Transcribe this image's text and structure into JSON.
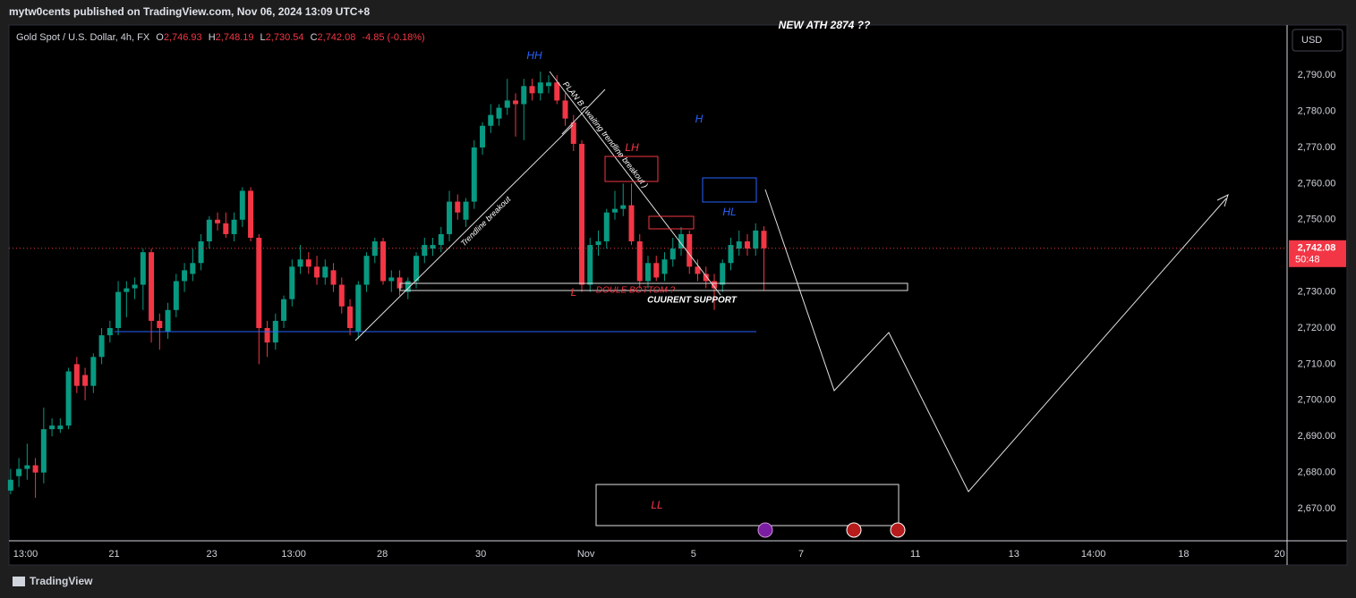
{
  "header": {
    "publisher": "mytw0cents published on TradingView.com, Nov 06, 2024 13:09 UTC+8",
    "footer": "TradingView"
  },
  "chart_data": {
    "type": "candlestick",
    "title": "Gold Spot / U.S. Dollar, 4h, FX",
    "legend_items": [
      {
        "label": "O",
        "value": "2,746.93"
      },
      {
        "label": "H",
        "value": "2,748.19"
      },
      {
        "label": "L",
        "value": "2,730.54"
      },
      {
        "label": "C",
        "value": "2,742.08"
      }
    ],
    "change": "-4.85 (-0.18%)",
    "currency": "USD",
    "open": [
      2675,
      2679,
      2681,
      2682,
      2680,
      2692,
      2692,
      2693,
      2710,
      2707,
      2704,
      2712,
      2718,
      2720,
      2730,
      2731,
      2732,
      2741,
      2722,
      2719,
      2725,
      2733,
      2735,
      2738,
      2744,
      2750,
      2749,
      2746,
      2750,
      2758,
      2745,
      2720,
      2716,
      2722,
      2728,
      2737,
      2739,
      2737,
      2734,
      2736,
      2732,
      2726,
      2719,
      2732,
      2740,
      2744,
      2733,
      2734,
      2730,
      2733,
      2740,
      2742,
      2743,
      2746,
      2755,
      2750,
      2755,
      2770,
      2776,
      2778,
      2781,
      2783,
      2782,
      2787,
      2785,
      2787,
      2788,
      2783,
      2777,
      2771,
      2732,
      2743,
      2744,
      2752,
      2753,
      2754,
      2744,
      2733,
      2738,
      2735,
      2739,
      2742,
      2746,
      2737,
      2735,
      2733,
      2732,
      2738,
      2742,
      2744,
      2742,
      2746.93
    ],
    "high": [
      2681,
      2684,
      2688,
      2684,
      2698,
      2695,
      2695,
      2709,
      2712,
      2709,
      2713,
      2720,
      2722,
      2733,
      2733,
      2734,
      2742,
      2742,
      2724,
      2727,
      2735,
      2738,
      2742,
      2746,
      2751,
      2752,
      2752,
      2752,
      2759,
      2759,
      2746,
      2722,
      2724,
      2729,
      2739,
      2743,
      2741,
      2740,
      2739,
      2738,
      2734,
      2728,
      2733,
      2741,
      2745,
      2745,
      2736,
      2736,
      2734,
      2741,
      2745,
      2745,
      2748,
      2758,
      2757,
      2756,
      2772,
      2777,
      2782,
      2782,
      2789,
      2785,
      2789,
      2789,
      2791,
      2790,
      2790,
      2785,
      2779,
      2772,
      2745,
      2747,
      2753,
      2758,
      2760,
      2760,
      2746,
      2740,
      2740,
      2741,
      2745,
      2748,
      2747,
      2739,
      2737,
      2735,
      2739,
      2745,
      2747,
      2746,
      2749,
      2748.19
    ],
    "low": [
      2674,
      2676,
      2678,
      2673,
      2677,
      2690,
      2691,
      2692,
      2702,
      2700,
      2702,
      2710,
      2716,
      2718,
      2723,
      2728,
      2725,
      2716,
      2714,
      2717,
      2723,
      2730,
      2733,
      2736,
      2742,
      2747,
      2745,
      2744,
      2748,
      2744,
      2710,
      2712,
      2714,
      2720,
      2726,
      2735,
      2735,
      2732,
      2732,
      2730,
      2724,
      2718,
      2717,
      2730,
      2738,
      2732,
      2730,
      2729,
      2728,
      2731,
      2738,
      2740,
      2741,
      2744,
      2750,
      2748,
      2753,
      2768,
      2774,
      2776,
      2779,
      2773,
      2772,
      2783,
      2783,
      2785,
      2782,
      2776,
      2769,
      2730,
      2730,
      2740,
      2742,
      2750,
      2751,
      2743,
      2731,
      2731,
      2733,
      2733,
      2737,
      2740,
      2735,
      2733,
      2731,
      2725,
      2730,
      2736,
      2740,
      2740,
      2740,
      2730.54
    ],
    "close": [
      2678,
      2681,
      2682,
      2680,
      2692,
      2693,
      2693,
      2708,
      2704,
      2704,
      2712,
      2718,
      2720,
      2730,
      2731,
      2732,
      2741,
      2722,
      2720,
      2725,
      2733,
      2736,
      2738,
      2744,
      2750,
      2749,
      2746,
      2750,
      2758,
      2745,
      2720,
      2716,
      2722,
      2728,
      2737,
      2739,
      2737,
      2734,
      2737,
      2732,
      2726,
      2720,
      2732,
      2740,
      2744,
      2733,
      2734,
      2731,
      2733,
      2740,
      2743,
      2743,
      2746,
      2755,
      2752,
      2755,
      2770,
      2776,
      2779,
      2781,
      2783,
      2782,
      2787,
      2785,
      2788,
      2788,
      2783,
      2778,
      2771,
      2732,
      2743,
      2744,
      2752,
      2753,
      2754,
      2744,
      2733,
      2738,
      2734,
      2739,
      2742,
      2746,
      2737,
      2735,
      2733,
      2731,
      2738,
      2743,
      2744,
      2742,
      2747,
      2742.08
    ],
    "up_color": "#089981",
    "down_color": "#f23645",
    "xlim": [
      -0.2,
      154.2
    ],
    "xticks": [
      {
        "value": 1.8,
        "label": "13:00"
      },
      {
        "value": 12.5,
        "label": "21"
      },
      {
        "value": 24.3,
        "label": "23"
      },
      {
        "value": 34.2,
        "label": "13:00"
      },
      {
        "value": 44.9,
        "label": "28"
      },
      {
        "value": 56.8,
        "label": "30"
      },
      {
        "value": 69.5,
        "label": "Nov"
      },
      {
        "value": 82.5,
        "label": "5"
      },
      {
        "value": 95.5,
        "label": "7"
      },
      {
        "value": 109.3,
        "label": "11"
      },
      {
        "value": 121.2,
        "label": "13"
      },
      {
        "value": 130.8,
        "label": "14:00"
      },
      {
        "value": 141.7,
        "label": "18"
      },
      {
        "value": 153.3,
        "label": "20"
      }
    ],
    "ylim": [
      2661.1,
      2803.9
    ],
    "yticks": [
      {
        "value": 2670,
        "label": "2,670.00"
      },
      {
        "value": 2680,
        "label": "2,680.00"
      },
      {
        "value": 2690,
        "label": "2,690.00"
      },
      {
        "value": 2700,
        "label": "2,700.00"
      },
      {
        "value": 2710,
        "label": "2,710.00"
      },
      {
        "value": 2720,
        "label": "2,720.00"
      },
      {
        "value": 2730,
        "label": "2,730.00"
      },
      {
        "value": 2740,
        "label": "2,740.00"
      },
      {
        "value": 2750,
        "label": "2,750.00"
      },
      {
        "value": 2760,
        "label": "2,760.00"
      },
      {
        "value": 2770,
        "label": "2,770.00"
      },
      {
        "value": 2780,
        "label": "2,780.00"
      },
      {
        "value": 2790,
        "label": "2,790.00"
      }
    ],
    "grid": false,
    "last_price": {
      "value": 2742.08,
      "label": "2,742.08",
      "countdown": "50:48"
    },
    "annotations": {
      "hh": "HH",
      "lh": "LH",
      "h": "H",
      "hl": "HL",
      "l": "L",
      "ll": "LL",
      "double_bottom": "DOULE BOTTOM ?",
      "support": "CUURENT SUPPORT",
      "trendline": "Trendline breakout",
      "plan_b": "PLAN B ( waiting trendline breakout )",
      "ath": "NEW ATH 2874  ??"
    }
  }
}
